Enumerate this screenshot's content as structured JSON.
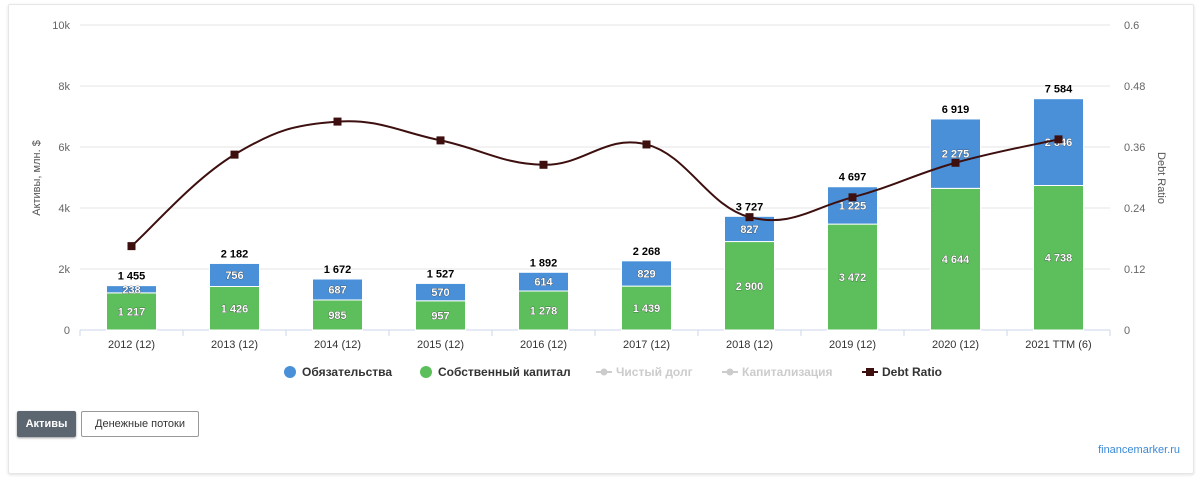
{
  "tabs": {
    "active_label": "Активы",
    "inactive_label": "Денежные потоки"
  },
  "credit": "financemarker.ru",
  "chart_data": {
    "type": "bar",
    "stacked": true,
    "categories": [
      "2012 (12)",
      "2013 (12)",
      "2014 (12)",
      "2015 (12)",
      "2016 (12)",
      "2017 (12)",
      "2018 (12)",
      "2019 (12)",
      "2020 (12)",
      "2021 TTM (6)"
    ],
    "series": [
      {
        "name": "Обязательства",
        "color": "#4a90d9",
        "values": [
          238,
          756,
          687,
          570,
          614,
          829,
          827,
          1225,
          2275,
          2846
        ],
        "labels": [
          "238",
          "756",
          "687",
          "570",
          "614",
          "829",
          "827",
          "1 225",
          "2 275",
          "2 846"
        ]
      },
      {
        "name": "Собственный капитал",
        "color": "#5cbf5c",
        "values": [
          1217,
          1426,
          985,
          957,
          1278,
          1439,
          2900,
          3472,
          4644,
          4738
        ],
        "labels": [
          "1 217",
          "1 426",
          "985",
          "957",
          "1 278",
          "1 439",
          "2 900",
          "3 472",
          "4 644",
          "4 738"
        ]
      }
    ],
    "totals": [
      "1 455",
      "2 182",
      "1 672",
      "1 527",
      "1 892",
      "2 268",
      "3 727",
      "4 697",
      "6 919",
      "7 584"
    ],
    "line_series": {
      "name": "Debt Ratio",
      "color": "#3d0f0f",
      "axis": "right",
      "values": [
        0.165,
        0.345,
        0.41,
        0.373,
        0.325,
        0.365,
        0.222,
        0.261,
        0.329,
        0.375
      ]
    },
    "hidden_series": [
      {
        "name": "Чистый долг"
      },
      {
        "name": "Капитализация"
      }
    ],
    "ylabel": "Активы, млн. $",
    "ylabel_right": "Debt Ratio",
    "ylim": [
      0,
      10000
    ],
    "ylim_right": [
      0,
      0.6
    ],
    "y_ticks": [
      0,
      2000,
      4000,
      6000,
      8000,
      10000
    ],
    "y_tick_labels": [
      "0",
      "2k",
      "4k",
      "6k",
      "8k",
      "10k"
    ],
    "y_right_ticks": [
      0,
      0.12,
      0.24,
      0.36,
      0.48,
      0.6
    ],
    "y_right_tick_labels": [
      "0",
      "0.12",
      "0.24",
      "0.36",
      "0.48",
      "0.6"
    ],
    "grid": true,
    "legend_position": "bottom-center"
  }
}
